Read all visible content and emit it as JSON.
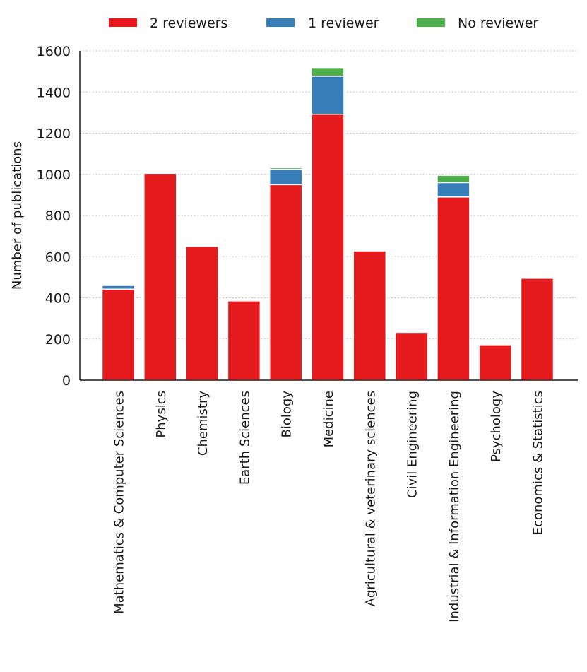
{
  "chart_data": {
    "type": "bar",
    "stacked": true,
    "title": "",
    "xlabel": "",
    "ylabel": "Number of publications",
    "ylim": [
      0,
      1600
    ],
    "yticks": [
      0,
      200,
      400,
      600,
      800,
      1000,
      1200,
      1400,
      1600
    ],
    "grid": "horizontal-dotted",
    "legend_position": "top-center",
    "categories": [
      "Mathematics & Computer Sciences",
      "Physics",
      "Chemistry",
      "Earth Sciences",
      "Biology",
      "Medicine",
      "Agricultural & veterinary sciences",
      "Civil Engineering",
      "Industrial & Information Engineering",
      "Psychology",
      "Economics & Statistics"
    ],
    "series": [
      {
        "name": "2 reviewers",
        "color": "#e41a1c",
        "values": [
          442,
          1005,
          650,
          385,
          950,
          1292,
          628,
          232,
          890,
          172,
          495
        ]
      },
      {
        "name": "1 reviewer",
        "color": "#377eb8",
        "values": [
          18,
          0,
          0,
          0,
          75,
          185,
          0,
          0,
          70,
          0,
          0
        ]
      },
      {
        "name": "No reviewer",
        "color": "#4daf4a",
        "values": [
          0,
          0,
          0,
          0,
          8,
          42,
          0,
          0,
          35,
          0,
          0
        ]
      }
    ]
  }
}
